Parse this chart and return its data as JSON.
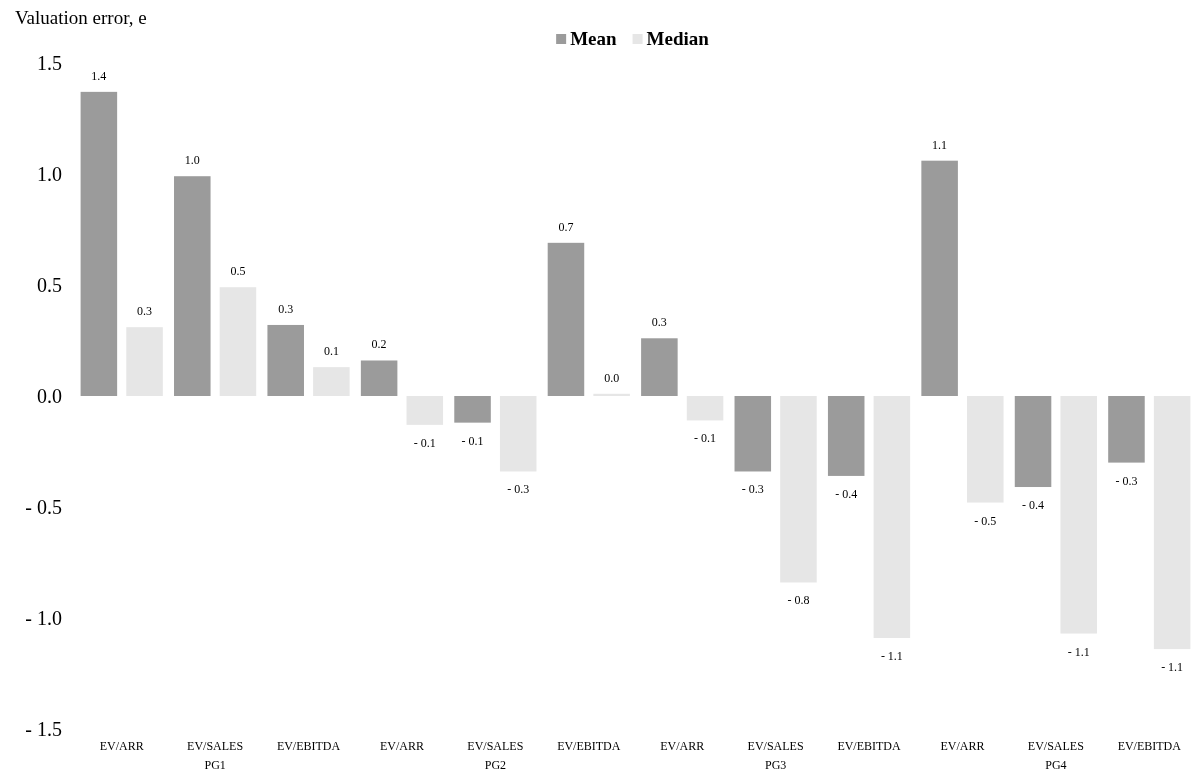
{
  "chart_data": {
    "type": "bar",
    "ylabel": "Valuation error, e",
    "categories": [
      "EV/ARR",
      "EV/SALES",
      "EV/EBITDA",
      "EV/ARR",
      "EV/SALES",
      "EV/EBITDA",
      "EV/ARR",
      "EV/SALES",
      "EV/EBITDA",
      "EV/ARR",
      "EV/SALES",
      "EV/EBITDA"
    ],
    "series": [
      {
        "name": "Mean",
        "color": "#9b9b9b",
        "values": [
          1.37,
          0.99,
          0.32,
          0.16,
          -0.12,
          0.69,
          0.26,
          -0.34,
          -0.36,
          1.06,
          -0.41,
          -0.3
        ],
        "value_labels": [
          "1.4",
          "1.0",
          "0.3",
          "0.2",
          "- 0.1",
          "0.7",
          "0.3",
          "- 0.3",
          "- 0.4",
          "1.1",
          "- 0.4",
          "- 0.3"
        ]
      },
      {
        "name": "Median",
        "color": "#e6e6e6",
        "values": [
          0.31,
          0.49,
          0.13,
          -0.13,
          -0.34,
          0.01,
          -0.11,
          -0.84,
          -1.09,
          -0.48,
          -1.07,
          -1.14
        ],
        "value_labels": [
          "0.3",
          "0.5",
          "0.1",
          "- 0.1",
          "- 0.3",
          "0.0",
          "- 0.1",
          "- 0.8",
          "- 1.1",
          "- 0.5",
          "- 1.1",
          "- 1.1"
        ]
      }
    ],
    "annotations": [
      "PG1",
      "PG2",
      "PG3",
      "PG4"
    ],
    "ylim": [
      -1.5,
      1.5
    ],
    "yticks": [
      {
        "value": -1.5,
        "label": "- 1.5"
      },
      {
        "value": -1,
        "label": "- 1.0"
      },
      {
        "value": -0.5,
        "label": "- 0.5"
      },
      {
        "value": 0,
        "label": "0.0"
      },
      {
        "value": 0.5,
        "label": "0.5"
      },
      {
        "value": 1,
        "label": "1.0"
      },
      {
        "value": 1.5,
        "label": "1.5"
      }
    ],
    "grid": false,
    "legend": "top"
  }
}
